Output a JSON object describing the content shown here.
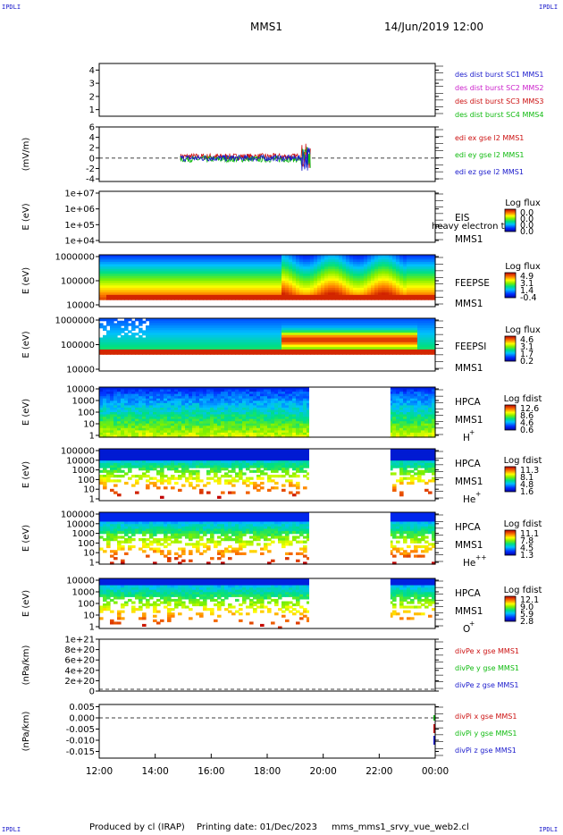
{
  "corners": {
    "tl": "IPDLI",
    "tr": "IPDLI",
    "bl": "IPDLI",
    "br": "IPDLI"
  },
  "header": {
    "title": "MMS1",
    "datetime": "14/Jun/2019 12:00"
  },
  "footer": {
    "produced": "Produced by cl (IRAP)",
    "printing": "Printing date: 01/Dec/2023",
    "script": "mms_mms1_srvy_vue_web2.cl"
  },
  "chart_data": [
    {
      "type": "line",
      "id": "p1",
      "yticks": [
        "4",
        "3",
        "2",
        "1"
      ],
      "ylim": [
        0.5,
        4.5
      ],
      "legend": [
        {
          "text": "des dist burst SC1 MMS1",
          "color": "#1a1acc"
        },
        {
          "text": "des dist burst SC2 MMS2",
          "color": "#cc22cc"
        },
        {
          "text": "des dist burst SC3 MMS3",
          "color": "#cc1111"
        },
        {
          "text": "des dist burst SC4 MMS4",
          "color": "#11bb11"
        }
      ]
    },
    {
      "type": "line",
      "id": "p2",
      "ylabel": "(mV/m)",
      "yticks": [
        "6",
        "4",
        "2",
        "0",
        "-2",
        "-4"
      ],
      "ylim": [
        -4.5,
        6
      ],
      "data_range_hours": [
        14.9,
        19.55
      ],
      "series": [
        {
          "name": "edi ex gse l2 MMS1",
          "color": "#cc1111"
        },
        {
          "name": "edi ey gse l2 MMS1",
          "color": "#11bb11"
        },
        {
          "name": "edi ez gse l2 MMS1",
          "color": "#1a1acc"
        }
      ]
    },
    {
      "type": "heatmap",
      "id": "p3",
      "ylabel": "E (eV)",
      "yticks": [
        "1e+07",
        "1e+06",
        "1e+05",
        "1e+04"
      ],
      "labels": [
        "EIS",
        "MMS1"
      ],
      "overlay": "heavy electron to",
      "cbar_title": "Log flux",
      "cbar_ticks": [
        "0.0",
        "0.0",
        "0.0",
        "0.0"
      ]
    },
    {
      "type": "heatmap",
      "id": "p4",
      "ylabel": "E (eV)",
      "yticks": [
        "1000000",
        "100000",
        "10000"
      ],
      "labels": [
        "FEEPSE",
        "MMS1"
      ],
      "cbar_title": "Log flux",
      "cbar_ticks": [
        "4.9",
        "3.1",
        "1.4",
        "-0.4"
      ],
      "gaps_hours": []
    },
    {
      "type": "heatmap",
      "id": "p5",
      "ylabel": "E (eV)",
      "yticks": [
        "1000000",
        "100000",
        "10000"
      ],
      "labels": [
        "FEEPSI",
        "MMS1"
      ],
      "cbar_title": "Log flux",
      "cbar_ticks": [
        "4.6",
        "3.1",
        "1.7",
        "0.2"
      ],
      "gaps_hours": []
    },
    {
      "type": "heatmap",
      "id": "p6",
      "ylabel": "E (eV)",
      "yticks": [
        "10000",
        "1000",
        "100",
        "10",
        "1"
      ],
      "labels": [
        "HPCA",
        "MMS1"
      ],
      "species": "H",
      "species_sup": "+",
      "cbar_title": "Log fdist",
      "cbar_ticks": [
        "12.6",
        "8.6",
        "4.6",
        "0.6"
      ],
      "gaps_hours": [
        [
          19.5,
          22.4
        ]
      ]
    },
    {
      "type": "heatmap",
      "id": "p7",
      "ylabel": "E (eV)",
      "yticks": [
        "100000",
        "10000",
        "1000",
        "100",
        "10",
        "1"
      ],
      "labels": [
        "HPCA",
        "MMS1"
      ],
      "species": "He",
      "species_sup": "+",
      "cbar_title": "Log fdist",
      "cbar_ticks": [
        "11.3",
        "8.1",
        "4.8",
        "1.6"
      ],
      "gaps_hours": [
        [
          19.5,
          22.4
        ]
      ]
    },
    {
      "type": "heatmap",
      "id": "p8",
      "ylabel": "E (eV)",
      "yticks": [
        "100000",
        "10000",
        "1000",
        "100",
        "10",
        "1"
      ],
      "labels": [
        "HPCA",
        "MMS1"
      ],
      "species": "He",
      "species_sup": "++",
      "cbar_title": "Log fdist",
      "cbar_ticks": [
        "11.1",
        "7.8",
        "4.5",
        "1.3"
      ],
      "gaps_hours": [
        [
          19.5,
          22.4
        ]
      ]
    },
    {
      "type": "heatmap",
      "id": "p9",
      "ylabel": "E (eV)",
      "yticks": [
        "10000",
        "1000",
        "100",
        "10",
        "1"
      ],
      "labels": [
        "HPCA",
        "MMS1"
      ],
      "species": "O",
      "species_sup": "+",
      "cbar_title": "Log fdist",
      "cbar_ticks": [
        "12.1",
        "9.0",
        "5.9",
        "2.8"
      ],
      "gaps_hours": [
        [
          19.5,
          22.4
        ]
      ]
    },
    {
      "type": "line",
      "id": "p10",
      "ylabel": "(nPa/km)",
      "yticks": [
        "1e+21",
        "8e+20",
        "6e+20",
        "4e+20",
        "2e+20",
        "0"
      ],
      "ylim": [
        0,
        1e+21
      ],
      "series": [
        {
          "name": "divPe x gse MMS1",
          "color": "#cc1111"
        },
        {
          "name": "divPe y gse MMS1",
          "color": "#11bb11"
        },
        {
          "name": "divPe z gse MMS1",
          "color": "#1a1acc"
        }
      ]
    },
    {
      "type": "line",
      "id": "p11",
      "ylabel": "(nPa/km)",
      "yticks": [
        "0.005",
        "0.000",
        "-0.005",
        "-0.010",
        "-0.015"
      ],
      "ylim": [
        -0.018,
        0.006
      ],
      "series": [
        {
          "name": "divPi x gse MMS1",
          "color": "#cc1111"
        },
        {
          "name": "divPi y gse MMS1",
          "color": "#11bb11"
        },
        {
          "name": "divPi z gse MMS1",
          "color": "#1a1acc"
        }
      ]
    }
  ],
  "xaxis": {
    "ticks": [
      "12:00",
      "14:00",
      "16:00",
      "18:00",
      "20:00",
      "22:00",
      "00:00"
    ],
    "xlim_hours": [
      12,
      24
    ]
  }
}
